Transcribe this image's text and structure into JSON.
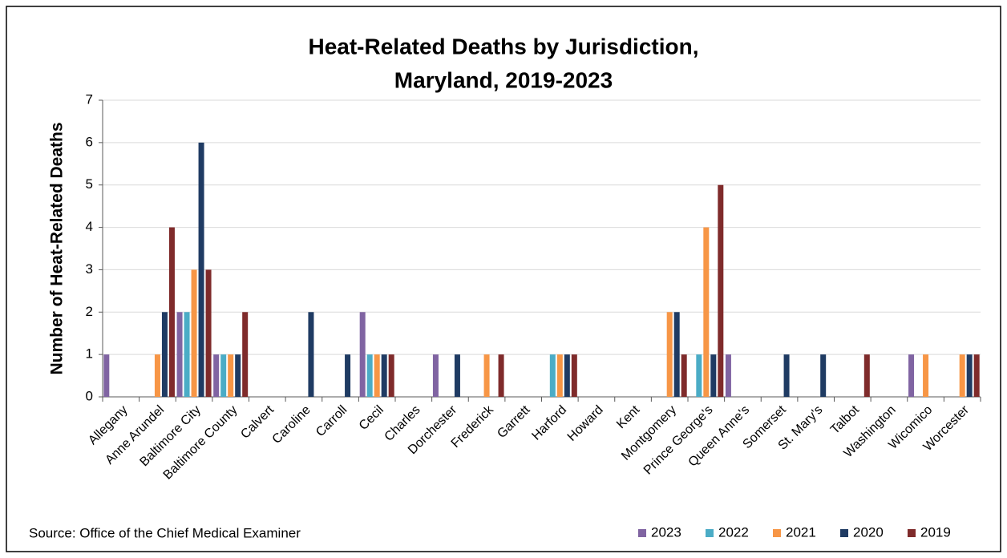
{
  "chart_data": {
    "type": "bar",
    "title": [
      "Heat-Related Deaths by Jurisdiction,",
      "Maryland, 2019-2023"
    ],
    "y_label": "Number of Heat-Related Deaths",
    "source": "Source: Office of the Chief Medical Examiner",
    "categories": [
      "Allegany",
      "Anne Arundel",
      "Baltimore City",
      "Baltimore County",
      "Calvert",
      "Caroline",
      "Carroll",
      "Cecil",
      "Charles",
      "Dorchester",
      "Frederick",
      "Garrett",
      "Harford",
      "Howard",
      "Kent",
      "Montgomery",
      "Prince George's",
      "Queen Anne's",
      "Somerset",
      "St. Mary's",
      "Talbot",
      "Washington",
      "Wicomico",
      "Worcester"
    ],
    "series": [
      {
        "name": "2023",
        "color": "#8064a2",
        "values": [
          1,
          0,
          2,
          1,
          0,
          0,
          0,
          2,
          0,
          1,
          0,
          0,
          0,
          0,
          0,
          0,
          0,
          1,
          0,
          0,
          0,
          0,
          1,
          0
        ]
      },
      {
        "name": "2022",
        "color": "#4bacc6",
        "values": [
          0,
          0,
          2,
          1,
          0,
          0,
          0,
          1,
          0,
          0,
          0,
          0,
          1,
          0,
          0,
          0,
          1,
          0,
          0,
          0,
          0,
          0,
          0,
          0
        ]
      },
      {
        "name": "2021",
        "color": "#f79646",
        "values": [
          0,
          1,
          3,
          1,
          0,
          0,
          0,
          1,
          0,
          0,
          1,
          0,
          1,
          0,
          0,
          2,
          4,
          0,
          0,
          0,
          0,
          0,
          1,
          1
        ]
      },
      {
        "name": "2020",
        "color": "#1f3b63",
        "values": [
          0,
          2,
          6,
          1,
          0,
          2,
          1,
          1,
          0,
          1,
          0,
          0,
          1,
          0,
          0,
          2,
          1,
          0,
          1,
          1,
          0,
          0,
          0,
          1
        ]
      },
      {
        "name": "2019",
        "color": "#7f2b2b",
        "values": [
          0,
          4,
          3,
          2,
          0,
          0,
          0,
          1,
          0,
          0,
          1,
          0,
          1,
          0,
          0,
          1,
          5,
          0,
          0,
          0,
          1,
          0,
          0,
          1
        ]
      }
    ],
    "ylim": [
      0,
      7
    ],
    "yticks": [
      0,
      1,
      2,
      3,
      4,
      5,
      6,
      7
    ],
    "grid": true,
    "legend": "bottom-right"
  }
}
